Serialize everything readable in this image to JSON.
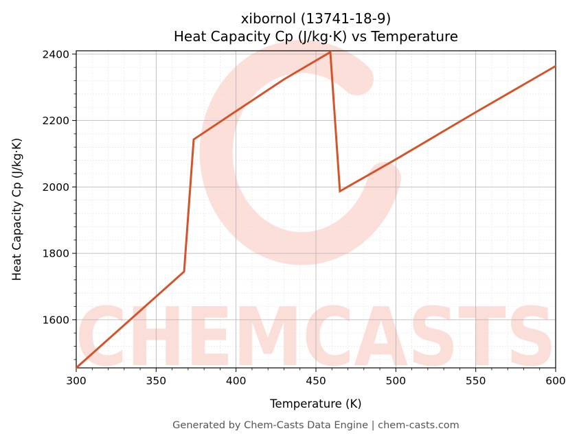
{
  "chart_data": {
    "type": "line",
    "title": "xibornol (13741-18-9)",
    "subtitle": "Heat Capacity Cp (J/kg·K) vs Temperature",
    "xlabel": "Temperature (K)",
    "ylabel": "Heat Capacity Cp (J/kg·K)",
    "xlim": [
      300,
      600
    ],
    "ylim": [
      1455,
      2410
    ],
    "x_ticks": [
      300,
      350,
      400,
      450,
      500,
      550,
      600
    ],
    "y_ticks": [
      1600,
      1800,
      2000,
      2200,
      2400
    ],
    "x_tick_labels": [
      "300",
      "350",
      "400",
      "450",
      "500",
      "550",
      "600"
    ],
    "y_tick_labels": [
      "1600",
      "1800",
      "2000",
      "2200",
      "2400"
    ],
    "grid": true,
    "line_color": "#d4532a",
    "series": [
      {
        "x": [
          300,
          367.5,
          373.5,
          400,
          430,
          459,
          465,
          500,
          550,
          600
        ],
        "y": [
          1455,
          1745,
          2143,
          2228,
          2324,
          2406,
          1987,
          2083,
          2225,
          2364
        ]
      }
    ]
  },
  "watermark": {
    "text": "CHEMCASTS"
  },
  "footer": {
    "text": "Generated by Chem-Casts Data Engine | chem-casts.com"
  }
}
